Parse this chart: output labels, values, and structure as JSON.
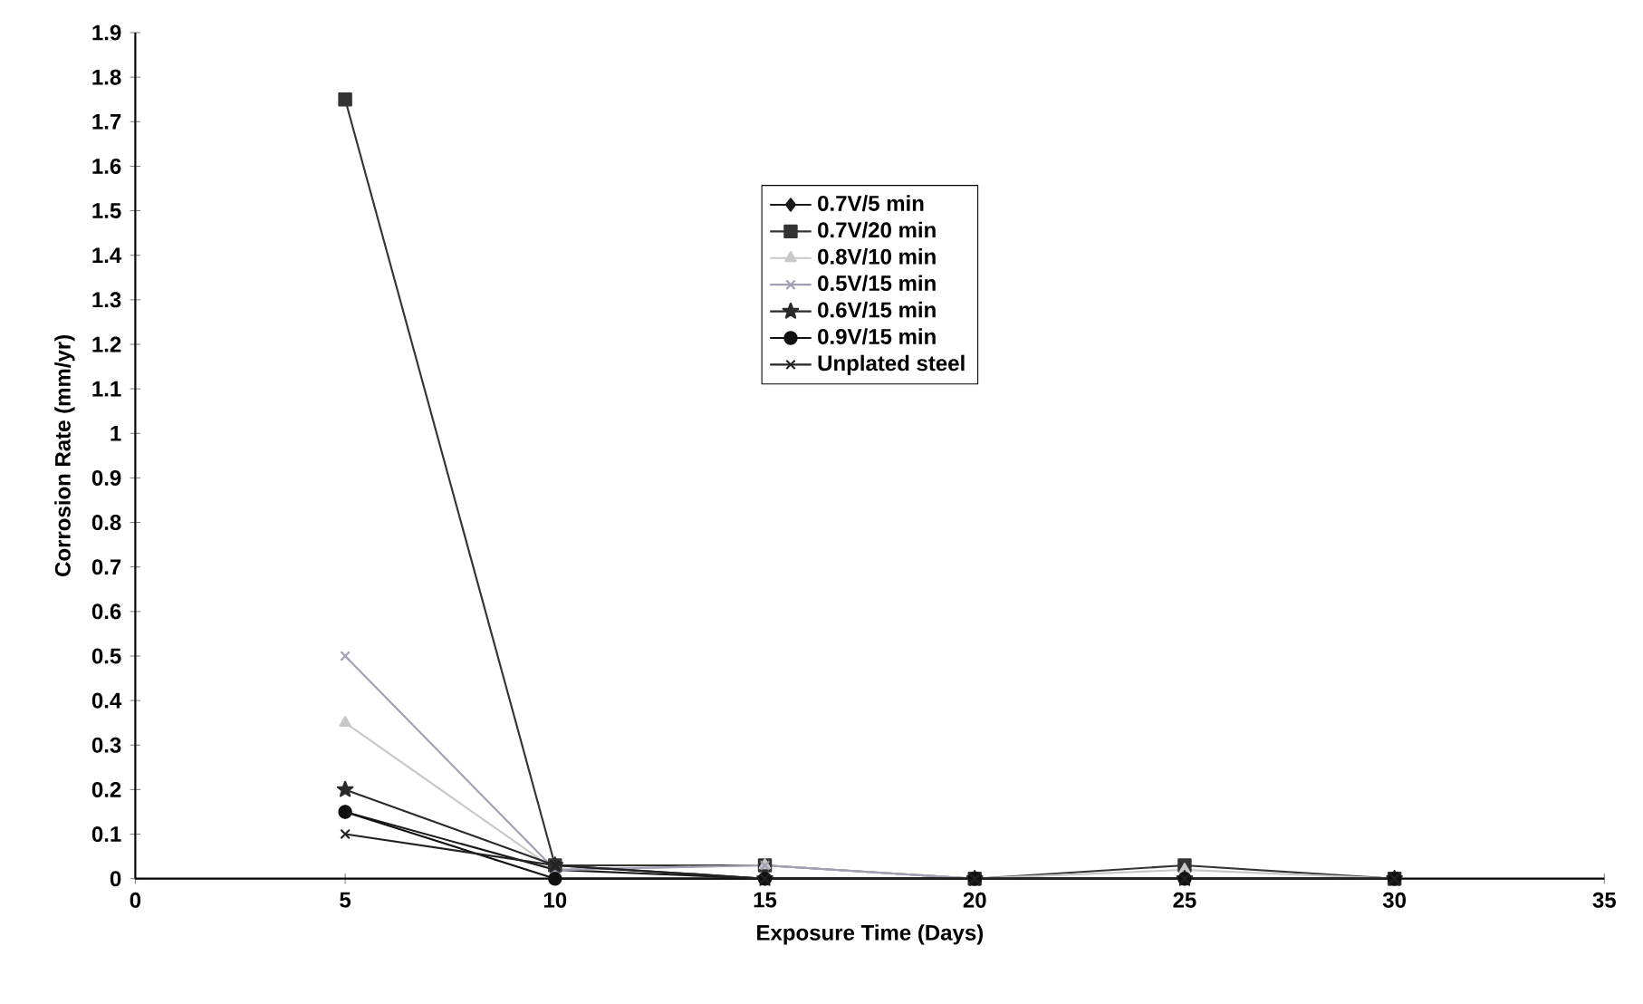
{
  "chart_data": {
    "type": "line",
    "xlabel": "Exposure Time (Days)",
    "ylabel": "Corrosion Rate (mm/yr)",
    "x": [
      5,
      10,
      15,
      20,
      25,
      30
    ],
    "series": [
      {
        "name": "0.7V/5 min",
        "color": "#1a1a1a",
        "marker": "diamond",
        "values": [
          0.15,
          0.02,
          0,
          0,
          0,
          0
        ]
      },
      {
        "name": "0.7V/20 min",
        "color": "#333333",
        "marker": "square",
        "values": [
          1.75,
          0.03,
          0.03,
          0,
          0.03,
          0
        ]
      },
      {
        "name": "0.8V/10 min",
        "color": "#c8c8c8",
        "marker": "triangle",
        "values": [
          0.35,
          0.02,
          0.03,
          0,
          0.02,
          0
        ]
      },
      {
        "name": "0.5V/15 min",
        "color": "#a0a0b4",
        "marker": "cross",
        "values": [
          0.5,
          0.02,
          0.03,
          0,
          0,
          0
        ]
      },
      {
        "name": "0.6V/15 min",
        "color": "#2a2a2a",
        "marker": "star",
        "values": [
          0.2,
          0.03,
          0,
          0,
          0,
          0
        ]
      },
      {
        "name": "0.9V/15 min",
        "color": "#111111",
        "marker": "circle",
        "values": [
          0.15,
          0,
          0,
          0,
          0,
          0
        ]
      },
      {
        "name": "Unplated  steel",
        "color": "#222222",
        "marker": "cross",
        "values": [
          0.1,
          0.03,
          0,
          0,
          0,
          0
        ]
      }
    ],
    "xlim": [
      0,
      35
    ],
    "xticks": [
      0,
      5,
      10,
      15,
      20,
      25,
      30,
      35
    ],
    "ylim": [
      0,
      1.9
    ],
    "yticks": [
      0,
      0.1,
      0.2,
      0.3,
      0.4,
      0.5,
      0.6,
      0.7,
      0.8,
      0.9,
      1,
      1.1,
      1.2,
      1.3,
      1.4,
      1.5,
      1.6,
      1.7,
      1.8,
      1.9
    ],
    "legend": "top",
    "grid": false,
    "line_style": "solid"
  }
}
